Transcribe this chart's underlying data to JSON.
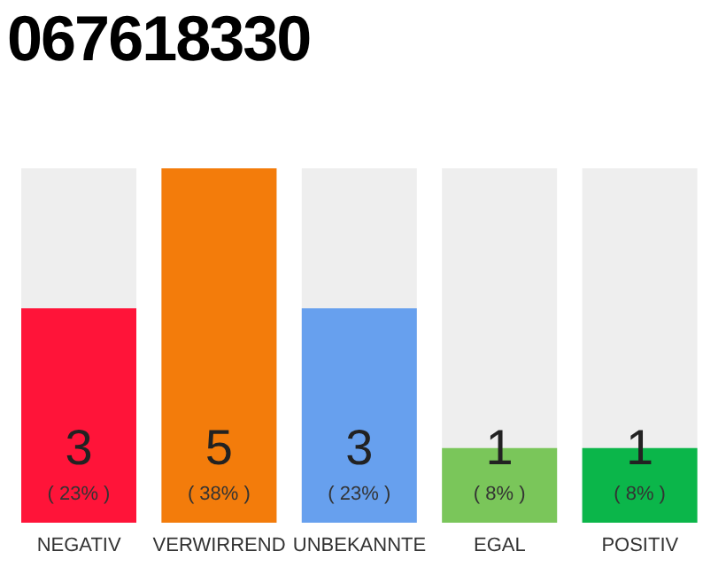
{
  "chart_data": {
    "type": "bar",
    "title": "067618330",
    "categories": [
      "NEGATIV",
      "VERWIRREND",
      "UNBEKANNTE",
      "EGAL",
      "POSITIV"
    ],
    "values": [
      23,
      38,
      23,
      8,
      8
    ],
    "colors": [
      "#ff1439",
      "#f37c0b",
      "#67a0ee",
      "#7ac65a",
      "#0bb64a"
    ],
    "value_labels": [
      "( 23% )",
      "( 38% )",
      "( 23% )",
      "( 8% )",
      "( 8% )"
    ],
    "annotations": [
      "3",
      "5",
      "3",
      "1",
      "1"
    ],
    "tick_labels": "x"
  }
}
